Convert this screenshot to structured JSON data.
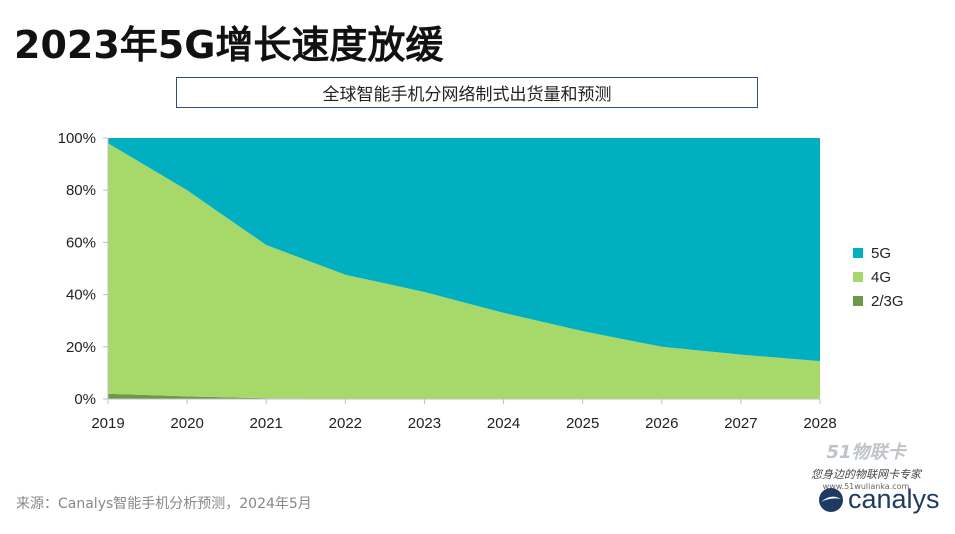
{
  "title": "2023年5G增长速度放缓",
  "subtitle": "全球智能手机分网络制式出货量和预测",
  "source": "来源：Canalys智能手机分析预测，2024年5月",
  "watermark": {
    "main": "51物联卡",
    "tagline": "您身边的物联网卡专家",
    "url": "www.51wulianka.com"
  },
  "logo_text": "canalys",
  "colors": {
    "5G": "#00b0c0",
    "4G": "#a6d96a",
    "2/3G": "#6a9a48"
  },
  "chart_data": {
    "type": "area",
    "stacked": true,
    "percent_stacked": true,
    "x": [
      "2019",
      "2020",
      "2021",
      "2022",
      "2023",
      "2024",
      "2025",
      "2026",
      "2027",
      "2028"
    ],
    "yticks": [
      "0%",
      "20%",
      "40%",
      "60%",
      "80%",
      "100%"
    ],
    "ylim": [
      0,
      100
    ],
    "legend_position": "right",
    "series": [
      {
        "name": "2/3G",
        "color": "#6a9a48",
        "values": [
          2,
          1,
          0.3,
          0.1,
          0,
          0,
          0,
          0,
          0,
          0
        ]
      },
      {
        "name": "4G",
        "color": "#a6d96a",
        "values": [
          96,
          79,
          58.7,
          47.5,
          41,
          33,
          26,
          20,
          17,
          14.5
        ]
      },
      {
        "name": "5G",
        "color": "#00b0c0",
        "values": [
          2,
          20,
          41,
          52.4,
          59,
          67,
          74,
          80,
          83,
          85.5
        ]
      }
    ],
    "legend_order": [
      "5G",
      "4G",
      "2/3G"
    ]
  }
}
